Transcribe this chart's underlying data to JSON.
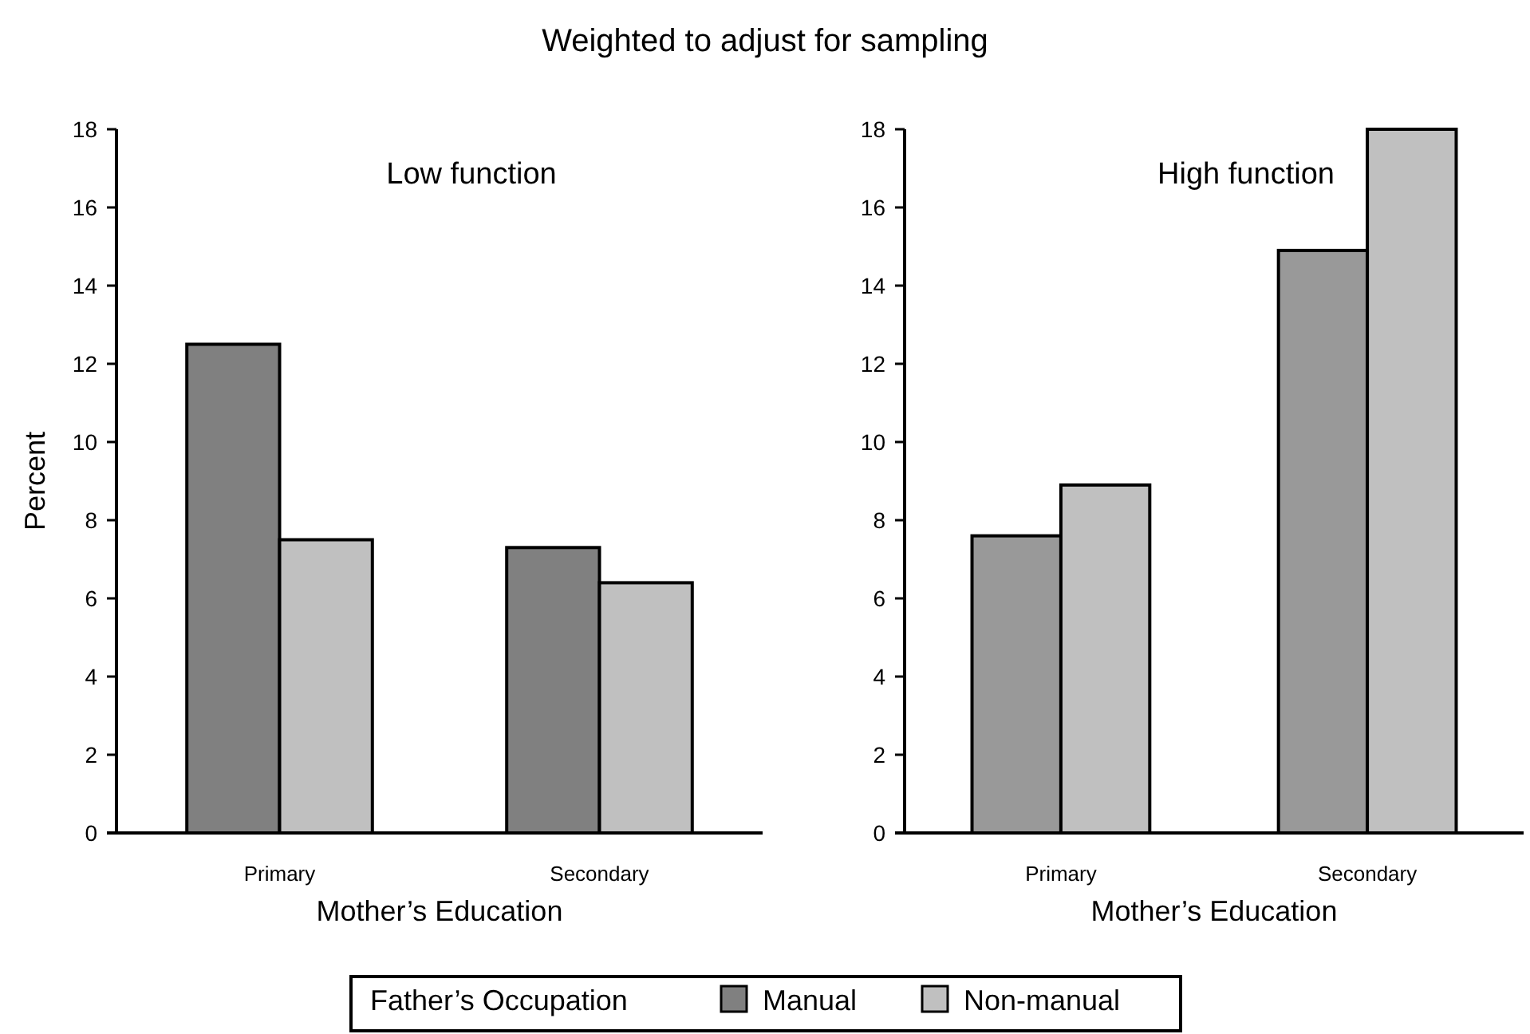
{
  "chart_data": [
    {
      "type": "bar",
      "title": "Weighted to adjust for sampling",
      "subtitle": "Low function",
      "xlabel": "Mother’s Education",
      "ylabel": "Percent",
      "legend_title": "Father’s Occupation",
      "legend": "bottom",
      "categories": [
        "Primary",
        "Secondary"
      ],
      "series": [
        {
          "name": "Manual",
          "color": "#808080",
          "values": [
            12.5,
            7.3
          ]
        },
        {
          "name": "Non-manual",
          "color": "#c0c0c0",
          "values": [
            7.5,
            6.4
          ]
        }
      ],
      "ylim": [
        0,
        18
      ],
      "yticks": [
        0,
        2,
        4,
        6,
        8,
        10,
        12,
        14,
        16,
        18
      ]
    },
    {
      "type": "bar",
      "subtitle": "High function",
      "xlabel": "Mother’s Education",
      "categories": [
        "Primary",
        "Secondary"
      ],
      "series": [
        {
          "color": "#999999",
          "values": [
            7.6,
            14.9
          ]
        },
        {
          "color": "#c0c0c0",
          "values": [
            8.9,
            18.0
          ]
        }
      ],
      "ylim": [
        0,
        18
      ],
      "yticks": [
        0,
        2,
        4,
        6,
        8,
        10,
        12,
        14,
        16,
        18
      ]
    }
  ]
}
